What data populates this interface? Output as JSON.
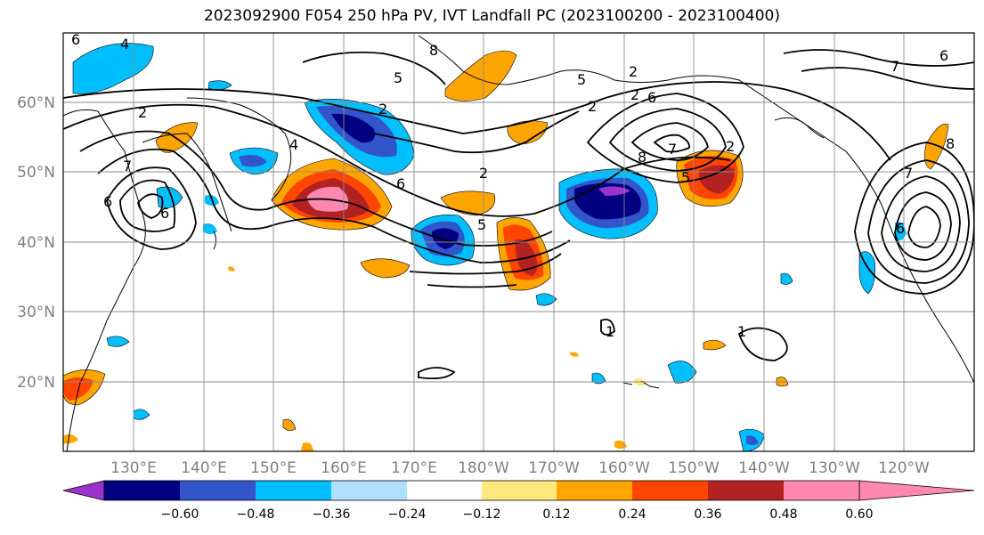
{
  "title": "2023092900 F054 250 hPa PV, IVT Landfall PC (2023100200 - 2023100400)",
  "lat_labels": [
    "60°N",
    "50°N",
    "40°N",
    "30°N",
    "20°N"
  ],
  "lon_labels": [
    "130°E",
    "140°E",
    "150°E",
    "160°E",
    "170°E",
    "180°W",
    "170°W",
    "160°W",
    "150°W",
    "140°W",
    "130°W",
    "120°W"
  ],
  "colorbar": {
    "colors": [
      "#9933cc",
      "#000080",
      "#3355cc",
      "#00bfff",
      "#b0e0ff",
      "#ffffff",
      "#ffe97f",
      "#ffa500",
      "#ff4500",
      "#b22222",
      "#ff88b0"
    ],
    "labels": [
      "−0.60",
      "−0.48",
      "−0.36",
      "−0.24",
      "−0.12",
      "0.12",
      "0.24",
      "0.36",
      "0.48",
      "0.60"
    ]
  },
  "contour_labels": [
    "6",
    "4",
    "2",
    "5",
    "2",
    "7",
    "6",
    "6",
    "4",
    "2",
    "6",
    "2",
    "5",
    "8",
    "2",
    "5",
    "2",
    "6",
    "7",
    "8",
    "5",
    "2",
    "8",
    "7",
    "6",
    "1",
    "1",
    "7",
    "6"
  ]
}
